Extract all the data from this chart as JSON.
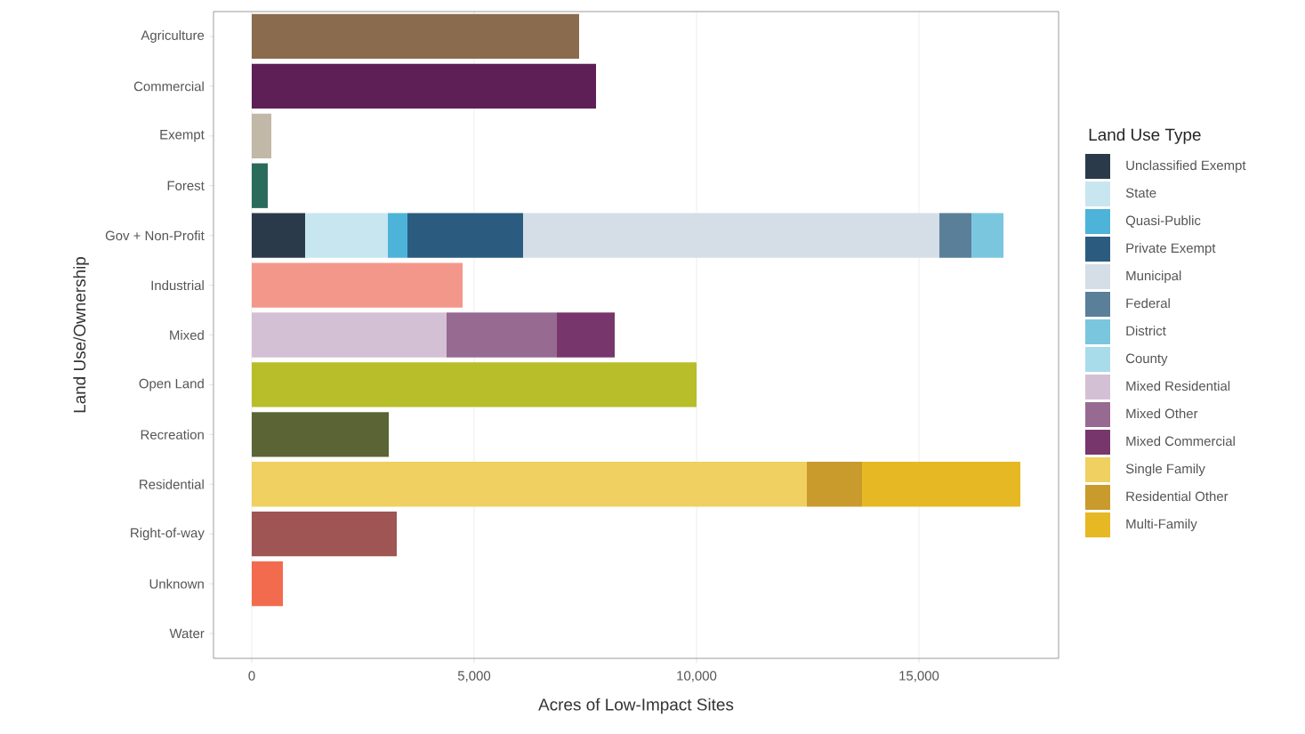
{
  "chart_data": {
    "type": "bar",
    "orientation": "horizontal",
    "stacked": true,
    "xlabel": "Acres of Low-Impact Sites",
    "ylabel": "Land Use/Ownership",
    "legend_title": "Land Use Type",
    "legend": "right",
    "grid": "x",
    "categories": [
      "Agriculture",
      "Commercial",
      "Exempt",
      "Forest",
      "Gov + Non-Profit",
      "Industrial",
      "Mixed",
      "Open Land",
      "Recreation",
      "Residential",
      "Right-of-way",
      "Unknown",
      "Water"
    ],
    "xlim": [
      -860,
      18140
    ],
    "xticks": [
      0,
      {
        "value": 5000,
        "label": "5,000"
      },
      {
        "value": 10000,
        "label": "10,000"
      },
      {
        "value": 15000,
        "label": "15,000"
      }
    ],
    "series": [
      {
        "colors": [
          "#8b6b4e",
          "#5e1f57",
          "#c2b8a8",
          "#2b6b5c",
          null,
          "#f3978a",
          null,
          "#b8bd2a",
          "#5a6434",
          null,
          "#9e5554",
          "#f26b4f",
          null
        ],
        "values": [
          7360,
          7740,
          440,
          360,
          null,
          4740,
          null,
          10000,
          3080,
          null,
          3260,
          700,
          null
        ]
      },
      {
        "name": "Unclassified Exempt",
        "color": "#2b3a4a",
        "values": [
          null,
          null,
          null,
          null,
          1200,
          null,
          null,
          null,
          null,
          null,
          null,
          null,
          null
        ]
      },
      {
        "name": "State",
        "color": "#c8e6ef",
        "values": [
          null,
          null,
          null,
          null,
          1860,
          null,
          null,
          null,
          null,
          null,
          null,
          null,
          null
        ]
      },
      {
        "name": "Quasi-Public",
        "color": "#4db3d8",
        "values": [
          null,
          null,
          null,
          null,
          440,
          null,
          null,
          null,
          null,
          null,
          null,
          null,
          null
        ]
      },
      {
        "name": "Private Exempt",
        "color": "#2b5c80",
        "values": [
          null,
          null,
          null,
          null,
          2600,
          null,
          null,
          null,
          null,
          null,
          null,
          null,
          null
        ]
      },
      {
        "name": "Municipal",
        "color": "#d5dde6",
        "values": [
          null,
          null,
          null,
          null,
          9360,
          null,
          null,
          null,
          null,
          null,
          null,
          null,
          null
        ]
      },
      {
        "name": "Federal",
        "color": "#5a7f99",
        "values": [
          null,
          null,
          null,
          null,
          720,
          null,
          null,
          null,
          null,
          null,
          null,
          null,
          null
        ]
      },
      {
        "name": "District",
        "color": "#7ac6df",
        "values": [
          null,
          null,
          null,
          null,
          720,
          null,
          null,
          null,
          null,
          null,
          null,
          null,
          null
        ]
      },
      {
        "name": "County",
        "color": "#a8dcea",
        "values": [
          null,
          null,
          null,
          null,
          null,
          null,
          null,
          null,
          null,
          null,
          null,
          null,
          null
        ]
      },
      {
        "name": "Mixed Residential",
        "color": "#d4c0d4",
        "values": [
          null,
          null,
          null,
          null,
          null,
          null,
          4380,
          null,
          null,
          null,
          null,
          null,
          null
        ]
      },
      {
        "name": "Mixed Other",
        "color": "#976a92",
        "values": [
          null,
          null,
          null,
          null,
          null,
          null,
          2480,
          null,
          null,
          null,
          null,
          null,
          null
        ]
      },
      {
        "name": "Mixed Commercial",
        "color": "#77376c",
        "values": [
          null,
          null,
          null,
          null,
          null,
          null,
          1300,
          null,
          null,
          null,
          null,
          null,
          null
        ]
      },
      {
        "name": "Single Family",
        "color": "#efd060",
        "values": [
          null,
          null,
          null,
          null,
          null,
          null,
          null,
          null,
          null,
          12480,
          null,
          null,
          null
        ]
      },
      {
        "name": "Residential Other",
        "color": "#c99a2c",
        "values": [
          null,
          null,
          null,
          null,
          null,
          null,
          null,
          null,
          null,
          1240,
          null,
          null,
          null
        ]
      },
      {
        "name": "Multi-Family",
        "color": "#e6b823",
        "values": [
          null,
          null,
          null,
          null,
          null,
          null,
          null,
          null,
          null,
          3560,
          null,
          null,
          null
        ]
      }
    ]
  }
}
